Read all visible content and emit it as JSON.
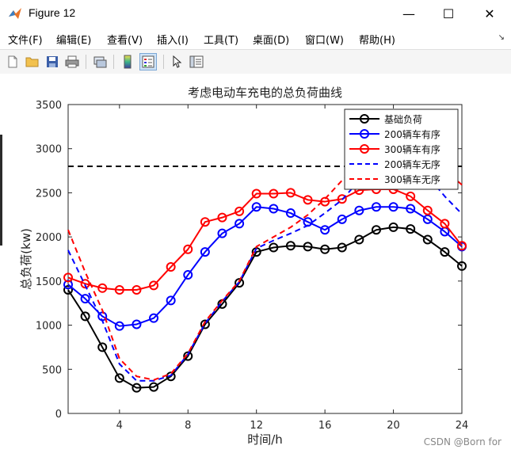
{
  "window": {
    "title": "Figure 12",
    "minimize_glyph": "—",
    "maximize_glyph": "☐",
    "close_glyph": "✕"
  },
  "menu": {
    "items": [
      "文件(F)",
      "编辑(E)",
      "查看(V)",
      "插入(I)",
      "工具(T)",
      "桌面(D)",
      "窗口(W)",
      "帮助(H)"
    ]
  },
  "toolbar": {
    "icons": [
      "new-figure-icon",
      "open-file-icon",
      "save-icon",
      "print-icon",
      "link-plot-icon",
      "colorbar-icon",
      "legend-icon",
      "pointer-icon",
      "property-editor-icon"
    ]
  },
  "watermark": "CSDN @Born for",
  "chart_data": {
    "type": "line",
    "title": "考虑电动车充电的总负荷曲线",
    "xlabel": "时间/h",
    "ylabel": "总负荷(kw)",
    "xlim": [
      1,
      24
    ],
    "ylim": [
      0,
      3500
    ],
    "xticks": [
      4,
      8,
      12,
      16,
      20,
      24
    ],
    "yticks": [
      0,
      500,
      1000,
      1500,
      2000,
      2500,
      3000,
      3500
    ],
    "legend_position": "top-right",
    "x": [
      1,
      2,
      3,
      4,
      5,
      6,
      7,
      8,
      9,
      10,
      11,
      12,
      13,
      14,
      15,
      16,
      17,
      18,
      19,
      20,
      21,
      22,
      23,
      24
    ],
    "series": [
      {
        "name": "基础负荷",
        "color": "#000000",
        "style": "solid-circle",
        "values": [
          1400,
          1100,
          750,
          400,
          290,
          300,
          420,
          650,
          1010,
          1240,
          1480,
          1830,
          1880,
          1900,
          1890,
          1860,
          1880,
          1970,
          2080,
          2110,
          2090,
          1970,
          1830,
          1670
        ]
      },
      {
        "name": "200辆车有序",
        "color": "#0000ff",
        "style": "solid-circle",
        "values": [
          1460,
          1300,
          1100,
          990,
          1010,
          1080,
          1280,
          1570,
          1830,
          2040,
          2150,
          2340,
          2320,
          2270,
          2170,
          2080,
          2200,
          2300,
          2340,
          2340,
          2320,
          2200,
          2060,
          1890
        ]
      },
      {
        "name": "300辆车有序",
        "color": "#ff0000",
        "style": "solid-circle",
        "values": [
          1540,
          1470,
          1420,
          1400,
          1400,
          1450,
          1660,
          1860,
          2170,
          2220,
          2290,
          2490,
          2490,
          2500,
          2420,
          2400,
          2430,
          2530,
          2540,
          2540,
          2460,
          2300,
          2150,
          1900
        ]
      },
      {
        "name": "200辆车无序",
        "color": "#0000ff",
        "style": "dashed",
        "values": [
          1850,
          1450,
          1050,
          560,
          370,
          370,
          430,
          670,
          1020,
          1270,
          1490,
          1870,
          1960,
          2040,
          2130,
          2270,
          2420,
          2640,
          2800,
          2790,
          2760,
          2690,
          2460,
          2260
        ]
      },
      {
        "name": "300辆车无序",
        "color": "#ff0000",
        "style": "dashed",
        "values": [
          2080,
          1600,
          1170,
          620,
          420,
          380,
          450,
          680,
          1040,
          1280,
          1500,
          1890,
          2000,
          2110,
          2250,
          2430,
          2640,
          2820,
          2820,
          2820,
          2790,
          2760,
          2760,
          2590
        ]
      },
      {
        "name": "",
        "color": "#000000",
        "style": "dashed-reference",
        "values": [
          2800,
          2800,
          2800,
          2800,
          2800,
          2800,
          2800,
          2800,
          2800,
          2800,
          2800,
          2800,
          2800,
          2800,
          2800,
          2800,
          2800,
          2800,
          2800,
          2800,
          2800,
          2800,
          2800,
          2800
        ]
      }
    ]
  }
}
